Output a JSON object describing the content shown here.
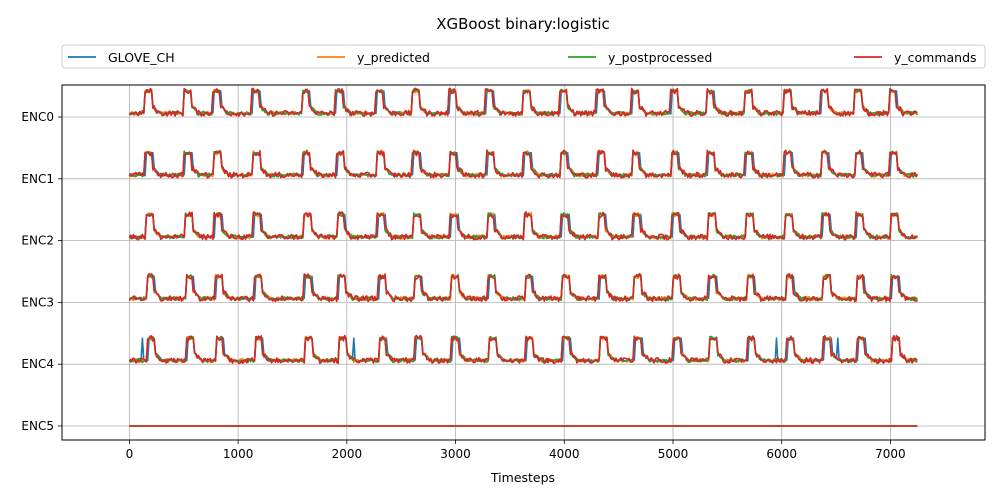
{
  "chart_data": {
    "type": "line",
    "title": "XGBoost binary:logistic",
    "xlabel": "Timesteps",
    "ylabel": "",
    "xlim": [
      -620,
      7870
    ],
    "x_ticks": [
      0,
      1000,
      2000,
      3000,
      4000,
      5000,
      6000,
      7000
    ],
    "y_categories": [
      "ENC0",
      "ENC1",
      "ENC2",
      "ENC3",
      "ENC4",
      "ENC5"
    ],
    "grid": true,
    "legend_placement": "top",
    "x_range": [
      0,
      7250
    ],
    "pulse_centers": [
      170,
      530,
      800,
      1160,
      1620,
      1930,
      2300,
      2630,
      2970,
      3310,
      3650,
      3990,
      4330,
      4650,
      5010,
      5340,
      5690,
      6050,
      6390,
      6700,
      7020
    ],
    "pulse_width": 70,
    "pulse_height": 0.42,
    "series": [
      {
        "name": "GLOVE_CH",
        "color": "#1f77b4"
      },
      {
        "name": "y_predicted",
        "color": "#ff7f0e"
      },
      {
        "name": "y_postprocessed",
        "color": "#2ca02c"
      },
      {
        "name": "y_commands",
        "color": "#d62728"
      }
    ]
  }
}
